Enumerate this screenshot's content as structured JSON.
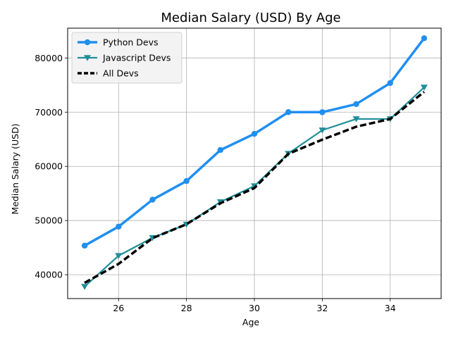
{
  "chart_data": {
    "type": "line",
    "title": "Median Salary (USD) By Age",
    "xlabel": "Age",
    "ylabel": "Median Salary (USD)",
    "x": [
      25,
      26,
      27,
      28,
      29,
      30,
      31,
      32,
      33,
      34,
      35
    ],
    "xlim": [
      24.5,
      35.5
    ],
    "ylim": [
      35600,
      85500
    ],
    "xticks": [
      26,
      28,
      30,
      32,
      34
    ],
    "yticks": [
      40000,
      50000,
      60000,
      70000,
      80000
    ],
    "grid": true,
    "legend_position": "top-left",
    "series": [
      {
        "name": "Python Devs",
        "color": "#1f8ff0",
        "marker": "circle",
        "dash": "solid",
        "values": [
          45372,
          48876,
          53850,
          57287,
          63016,
          65998,
          70003,
          70000,
          71496,
          75370,
          83640
        ]
      },
      {
        "name": "Javascript Devs",
        "color": "#1f8f9a",
        "marker": "triangle-down",
        "dash": "solid",
        "values": [
          37810,
          43515,
          46823,
          49293,
          53437,
          56373,
          62375,
          66674,
          68745,
          68746,
          74583
        ]
      },
      {
        "name": "All Devs",
        "color": "#000000",
        "marker": "none",
        "dash": "dashed",
        "values": [
          38496,
          42000,
          46752,
          49320,
          53200,
          56000,
          62316,
          64928,
          67317,
          68748,
          73752
        ]
      }
    ]
  }
}
